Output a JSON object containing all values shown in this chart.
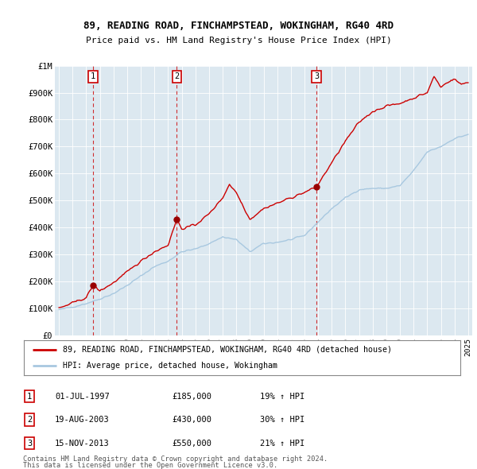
{
  "title1": "89, READING ROAD, FINCHAMPSTEAD, WOKINGHAM, RG40 4RD",
  "title2": "Price paid vs. HM Land Registry's House Price Index (HPI)",
  "plot_bg": "#dce8f0",
  "ylim": [
    0,
    1000000
  ],
  "yticks": [
    0,
    100000,
    200000,
    300000,
    400000,
    500000,
    600000,
    700000,
    800000,
    900000,
    1000000
  ],
  "ytick_labels": [
    "£0",
    "£100K",
    "£200K",
    "£300K",
    "£400K",
    "£500K",
    "£600K",
    "£700K",
    "£800K",
    "£900K",
    "£1M"
  ],
  "xlim_start": 1994.7,
  "xlim_end": 2025.3,
  "sales": [
    {
      "year": 1997.5,
      "price": 185000,
      "label": "1"
    },
    {
      "year": 2003.64,
      "price": 430000,
      "label": "2"
    },
    {
      "year": 2013.88,
      "price": 550000,
      "label": "3"
    }
  ],
  "sale_vlines": [
    1997.5,
    2003.64,
    2013.88
  ],
  "hpi_line_color": "#a8c8e0",
  "price_line_color": "#cc0000",
  "sale_dot_color": "#990000",
  "legend_label1": "89, READING ROAD, FINCHAMPSTEAD, WOKINGHAM, RG40 4RD (detached house)",
  "legend_label2": "HPI: Average price, detached house, Wokingham",
  "table_entries": [
    {
      "num": "1",
      "date": "01-JUL-1997",
      "price": "£185,000",
      "hpi": "19% ↑ HPI"
    },
    {
      "num": "2",
      "date": "19-AUG-2003",
      "price": "£430,000",
      "hpi": "30% ↑ HPI"
    },
    {
      "num": "3",
      "date": "15-NOV-2013",
      "price": "£550,000",
      "hpi": "21% ↑ HPI"
    }
  ],
  "footer1": "Contains HM Land Registry data © Crown copyright and database right 2024.",
  "footer2": "This data is licensed under the Open Government Licence v3.0."
}
